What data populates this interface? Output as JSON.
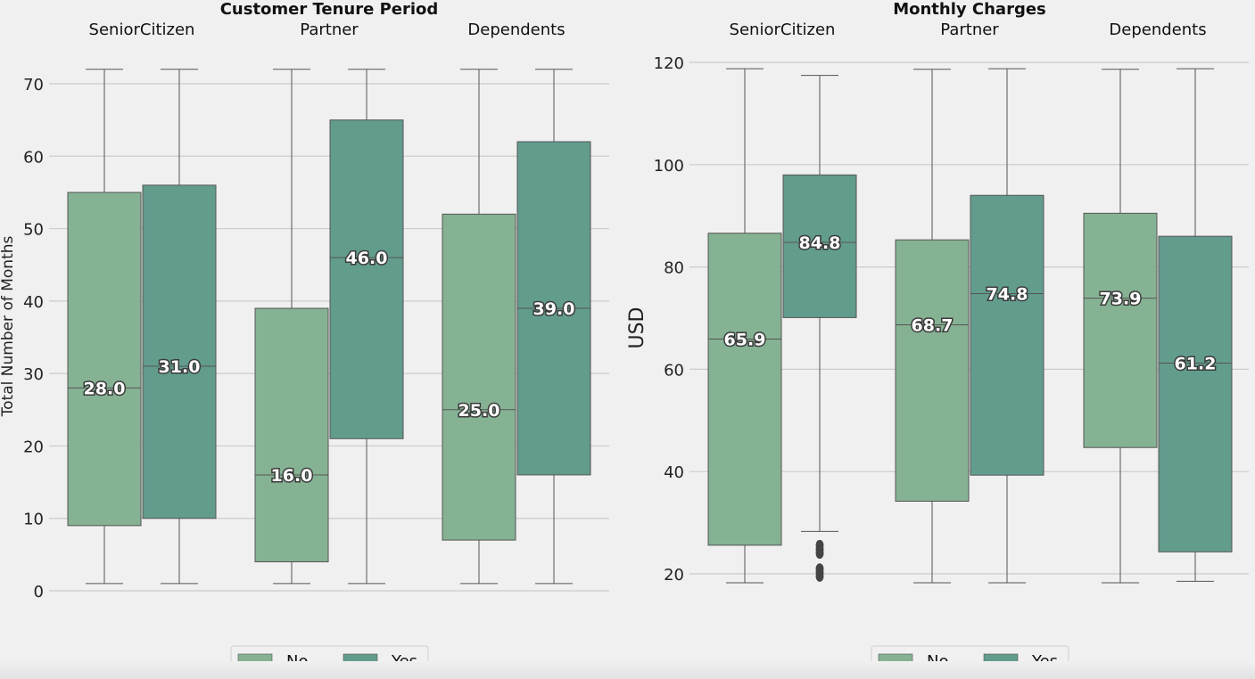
{
  "chart_data": [
    {
      "type": "box",
      "title": "Customer Tenure Period",
      "ylabel": "Total Number of Months",
      "xlabel": "",
      "ylim": [
        0,
        75
      ],
      "yticks": [
        0,
        10,
        20,
        30,
        40,
        50,
        60,
        70
      ],
      "grid": true,
      "legend": {
        "placement": "bottom-center",
        "entries": [
          "No",
          "Yes"
        ]
      },
      "groups": [
        {
          "name": "SeniorCitizen",
          "boxes": [
            {
              "category": "No",
              "whisker_low": 1,
              "q1": 9,
              "median": 28.0,
              "q3": 55,
              "whisker_high": 72,
              "outliers": [],
              "label": "28.0"
            },
            {
              "category": "Yes",
              "whisker_low": 1,
              "q1": 10,
              "median": 31.0,
              "q3": 56,
              "whisker_high": 72,
              "outliers": [],
              "label": "31.0"
            }
          ]
        },
        {
          "name": "Partner",
          "boxes": [
            {
              "category": "No",
              "whisker_low": 1,
              "q1": 4,
              "median": 16.0,
              "q3": 39,
              "whisker_high": 72,
              "outliers": [],
              "label": "16.0"
            },
            {
              "category": "Yes",
              "whisker_low": 1,
              "q1": 21,
              "median": 46.0,
              "q3": 65,
              "whisker_high": 72,
              "outliers": [],
              "label": "46.0"
            }
          ]
        },
        {
          "name": "Dependents",
          "boxes": [
            {
              "category": "No",
              "whisker_low": 1,
              "q1": 7,
              "median": 25.0,
              "q3": 52,
              "whisker_high": 72,
              "outliers": [],
              "label": "25.0"
            },
            {
              "category": "Yes",
              "whisker_low": 1,
              "q1": 16,
              "median": 39.0,
              "q3": 62,
              "whisker_high": 72,
              "outliers": [],
              "label": "39.0"
            }
          ]
        }
      ]
    },
    {
      "type": "box",
      "title": "Monthly Charges",
      "ylabel": "USD",
      "xlabel": "",
      "ylim": [
        15,
        122
      ],
      "yticks": [
        20,
        40,
        60,
        80,
        100,
        120
      ],
      "grid": true,
      "legend": {
        "placement": "bottom-center",
        "entries": [
          "No",
          "Yes"
        ]
      },
      "groups": [
        {
          "name": "SeniorCitizen",
          "boxes": [
            {
              "category": "No",
              "whisker_low": 18.25,
              "q1": 25.6,
              "median": 65.9,
              "q3": 86.6,
              "whisker_high": 118.75,
              "outliers": [],
              "label": "65.9"
            },
            {
              "category": "Yes",
              "whisker_low": 28.3,
              "q1": 70.1,
              "median": 84.8,
              "q3": 98.0,
              "whisker_high": 117.45,
              "outliers": [
                25.6,
                24.8,
                24.0,
                21.0,
                20.3,
                19.5
              ],
              "label": "84.8"
            }
          ]
        },
        {
          "name": "Partner",
          "boxes": [
            {
              "category": "No",
              "whisker_low": 18.25,
              "q1": 34.2,
              "median": 68.7,
              "q3": 85.3,
              "whisker_high": 118.65,
              "outliers": [],
              "label": "68.7"
            },
            {
              "category": "Yes",
              "whisker_low": 18.25,
              "q1": 39.3,
              "median": 74.8,
              "q3": 94.0,
              "whisker_high": 118.75,
              "outliers": [],
              "label": "74.8"
            }
          ]
        },
        {
          "name": "Dependents",
          "boxes": [
            {
              "category": "No",
              "whisker_low": 18.25,
              "q1": 44.7,
              "median": 73.9,
              "q3": 90.5,
              "whisker_high": 118.65,
              "outliers": [],
              "label": "73.9"
            },
            {
              "category": "Yes",
              "whisker_low": 18.55,
              "q1": 24.3,
              "median": 61.2,
              "q3": 86.0,
              "whisker_high": 118.75,
              "outliers": [],
              "label": "61.2"
            }
          ]
        }
      ]
    }
  ],
  "colors": {
    "No": "#85b293",
    "Yes": "#629c8d",
    "grid": "#cbcbcb",
    "background": "#f0f0f0",
    "line": "#555555"
  }
}
